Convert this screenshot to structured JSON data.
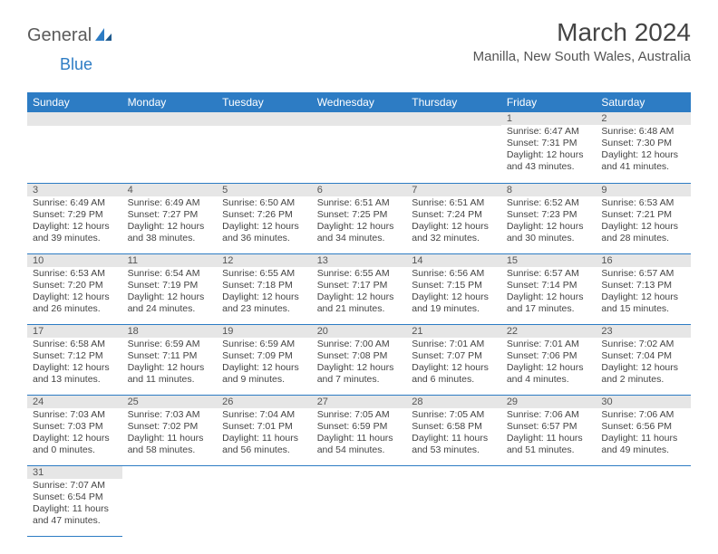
{
  "logo": {
    "part1": "General",
    "part2": "Blue"
  },
  "title": "March 2024",
  "location": "Manilla, New South Wales, Australia",
  "colors": {
    "header_bg": "#2d7cc4",
    "header_text": "#ffffff",
    "daynum_bg": "#e6e6e6",
    "cell_border": "#2d7cc4",
    "logo_blue": "#2d7cc4",
    "logo_gray": "#5a5a5a"
  },
  "weekdays": [
    "Sunday",
    "Monday",
    "Tuesday",
    "Wednesday",
    "Thursday",
    "Friday",
    "Saturday"
  ],
  "weeks": [
    [
      null,
      null,
      null,
      null,
      null,
      {
        "n": "1",
        "sr": "Sunrise: 6:47 AM",
        "ss": "Sunset: 7:31 PM",
        "dl": "Daylight: 12 hours and 43 minutes."
      },
      {
        "n": "2",
        "sr": "Sunrise: 6:48 AM",
        "ss": "Sunset: 7:30 PM",
        "dl": "Daylight: 12 hours and 41 minutes."
      }
    ],
    [
      {
        "n": "3",
        "sr": "Sunrise: 6:49 AM",
        "ss": "Sunset: 7:29 PM",
        "dl": "Daylight: 12 hours and 39 minutes."
      },
      {
        "n": "4",
        "sr": "Sunrise: 6:49 AM",
        "ss": "Sunset: 7:27 PM",
        "dl": "Daylight: 12 hours and 38 minutes."
      },
      {
        "n": "5",
        "sr": "Sunrise: 6:50 AM",
        "ss": "Sunset: 7:26 PM",
        "dl": "Daylight: 12 hours and 36 minutes."
      },
      {
        "n": "6",
        "sr": "Sunrise: 6:51 AM",
        "ss": "Sunset: 7:25 PM",
        "dl": "Daylight: 12 hours and 34 minutes."
      },
      {
        "n": "7",
        "sr": "Sunrise: 6:51 AM",
        "ss": "Sunset: 7:24 PM",
        "dl": "Daylight: 12 hours and 32 minutes."
      },
      {
        "n": "8",
        "sr": "Sunrise: 6:52 AM",
        "ss": "Sunset: 7:23 PM",
        "dl": "Daylight: 12 hours and 30 minutes."
      },
      {
        "n": "9",
        "sr": "Sunrise: 6:53 AM",
        "ss": "Sunset: 7:21 PM",
        "dl": "Daylight: 12 hours and 28 minutes."
      }
    ],
    [
      {
        "n": "10",
        "sr": "Sunrise: 6:53 AM",
        "ss": "Sunset: 7:20 PM",
        "dl": "Daylight: 12 hours and 26 minutes."
      },
      {
        "n": "11",
        "sr": "Sunrise: 6:54 AM",
        "ss": "Sunset: 7:19 PM",
        "dl": "Daylight: 12 hours and 24 minutes."
      },
      {
        "n": "12",
        "sr": "Sunrise: 6:55 AM",
        "ss": "Sunset: 7:18 PM",
        "dl": "Daylight: 12 hours and 23 minutes."
      },
      {
        "n": "13",
        "sr": "Sunrise: 6:55 AM",
        "ss": "Sunset: 7:17 PM",
        "dl": "Daylight: 12 hours and 21 minutes."
      },
      {
        "n": "14",
        "sr": "Sunrise: 6:56 AM",
        "ss": "Sunset: 7:15 PM",
        "dl": "Daylight: 12 hours and 19 minutes."
      },
      {
        "n": "15",
        "sr": "Sunrise: 6:57 AM",
        "ss": "Sunset: 7:14 PM",
        "dl": "Daylight: 12 hours and 17 minutes."
      },
      {
        "n": "16",
        "sr": "Sunrise: 6:57 AM",
        "ss": "Sunset: 7:13 PM",
        "dl": "Daylight: 12 hours and 15 minutes."
      }
    ],
    [
      {
        "n": "17",
        "sr": "Sunrise: 6:58 AM",
        "ss": "Sunset: 7:12 PM",
        "dl": "Daylight: 12 hours and 13 minutes."
      },
      {
        "n": "18",
        "sr": "Sunrise: 6:59 AM",
        "ss": "Sunset: 7:11 PM",
        "dl": "Daylight: 12 hours and 11 minutes."
      },
      {
        "n": "19",
        "sr": "Sunrise: 6:59 AM",
        "ss": "Sunset: 7:09 PM",
        "dl": "Daylight: 12 hours and 9 minutes."
      },
      {
        "n": "20",
        "sr": "Sunrise: 7:00 AM",
        "ss": "Sunset: 7:08 PM",
        "dl": "Daylight: 12 hours and 7 minutes."
      },
      {
        "n": "21",
        "sr": "Sunrise: 7:01 AM",
        "ss": "Sunset: 7:07 PM",
        "dl": "Daylight: 12 hours and 6 minutes."
      },
      {
        "n": "22",
        "sr": "Sunrise: 7:01 AM",
        "ss": "Sunset: 7:06 PM",
        "dl": "Daylight: 12 hours and 4 minutes."
      },
      {
        "n": "23",
        "sr": "Sunrise: 7:02 AM",
        "ss": "Sunset: 7:04 PM",
        "dl": "Daylight: 12 hours and 2 minutes."
      }
    ],
    [
      {
        "n": "24",
        "sr": "Sunrise: 7:03 AM",
        "ss": "Sunset: 7:03 PM",
        "dl": "Daylight: 12 hours and 0 minutes."
      },
      {
        "n": "25",
        "sr": "Sunrise: 7:03 AM",
        "ss": "Sunset: 7:02 PM",
        "dl": "Daylight: 11 hours and 58 minutes."
      },
      {
        "n": "26",
        "sr": "Sunrise: 7:04 AM",
        "ss": "Sunset: 7:01 PM",
        "dl": "Daylight: 11 hours and 56 minutes."
      },
      {
        "n": "27",
        "sr": "Sunrise: 7:05 AM",
        "ss": "Sunset: 6:59 PM",
        "dl": "Daylight: 11 hours and 54 minutes."
      },
      {
        "n": "28",
        "sr": "Sunrise: 7:05 AM",
        "ss": "Sunset: 6:58 PM",
        "dl": "Daylight: 11 hours and 53 minutes."
      },
      {
        "n": "29",
        "sr": "Sunrise: 7:06 AM",
        "ss": "Sunset: 6:57 PM",
        "dl": "Daylight: 11 hours and 51 minutes."
      },
      {
        "n": "30",
        "sr": "Sunrise: 7:06 AM",
        "ss": "Sunset: 6:56 PM",
        "dl": "Daylight: 11 hours and 49 minutes."
      }
    ],
    [
      {
        "n": "31",
        "sr": "Sunrise: 7:07 AM",
        "ss": "Sunset: 6:54 PM",
        "dl": "Daylight: 11 hours and 47 minutes."
      },
      null,
      null,
      null,
      null,
      null,
      null
    ]
  ]
}
